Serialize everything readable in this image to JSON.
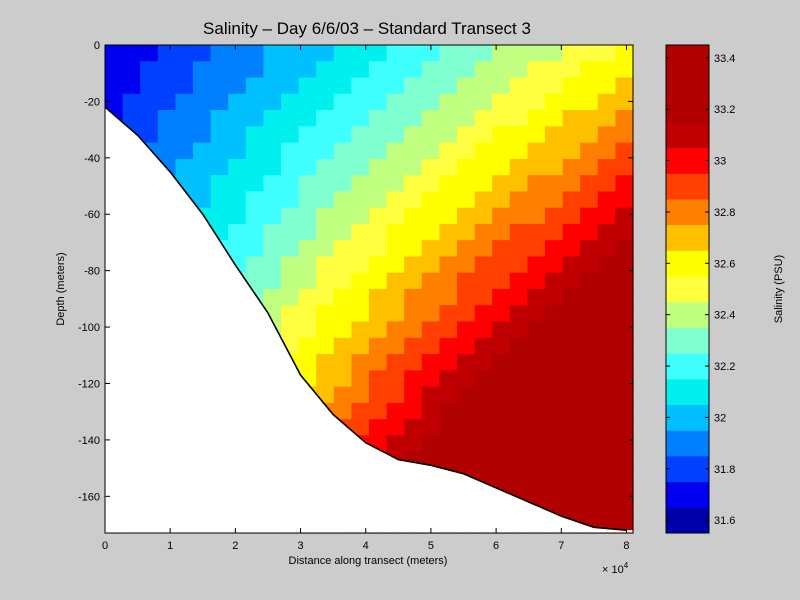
{
  "chart_data": {
    "type": "contour",
    "title": "Salinity – Day 6/6/03 – Standard Transect 3",
    "xlabel": "Distance along transect (meters)",
    "ylabel": "Depth (meters)",
    "x_multiplier": "× 10",
    "x_multiplier_exponent": "4",
    "xlim": [
      0,
      81000
    ],
    "ylim": [
      -173,
      0
    ],
    "x_ticks": [
      0,
      1,
      2,
      3,
      4,
      5,
      6,
      7,
      8
    ],
    "y_ticks": [
      0,
      -20,
      -40,
      -60,
      -80,
      -100,
      -120,
      -140,
      -160
    ],
    "colorbar": {
      "label": "Salinity (PSU)",
      "range": [
        31.55,
        33.45
      ],
      "ticks": [
        "31.6",
        "31.8",
        "32",
        "32.2",
        "32.4",
        "32.6",
        "32.8",
        "33",
        "33.2",
        "33.4"
      ],
      "levels": [
        31.55,
        31.65,
        31.75,
        31.85,
        31.95,
        32.05,
        32.15,
        32.25,
        32.35,
        32.45,
        32.55,
        32.65,
        32.75,
        32.85,
        32.95,
        33.05,
        33.15,
        33.25,
        33.35,
        33.45
      ],
      "colors": [
        "#0000aa",
        "#0000f0",
        "#0040ff",
        "#0080ff",
        "#00c0ff",
        "#00f0f0",
        "#40ffff",
        "#80ffd0",
        "#c0ff80",
        "#ffff40",
        "#ffff00",
        "#ffc000",
        "#ff8000",
        "#ff4000",
        "#ff0000",
        "#c00000",
        "#b00000",
        "#b00000",
        "#b00000"
      ]
    },
    "seafloor": {
      "x": [
        0,
        5000,
        10000,
        15000,
        20000,
        25000,
        30000,
        35000,
        40000,
        45000,
        50000,
        55000,
        60000,
        65000,
        70000,
        75000,
        80000
      ],
      "depth": [
        -22,
        -32,
        -45,
        -60,
        -78,
        -95,
        -117,
        -131,
        -141,
        -147,
        -149,
        -152,
        -157,
        -162,
        -167,
        -171,
        -172
      ]
    }
  }
}
